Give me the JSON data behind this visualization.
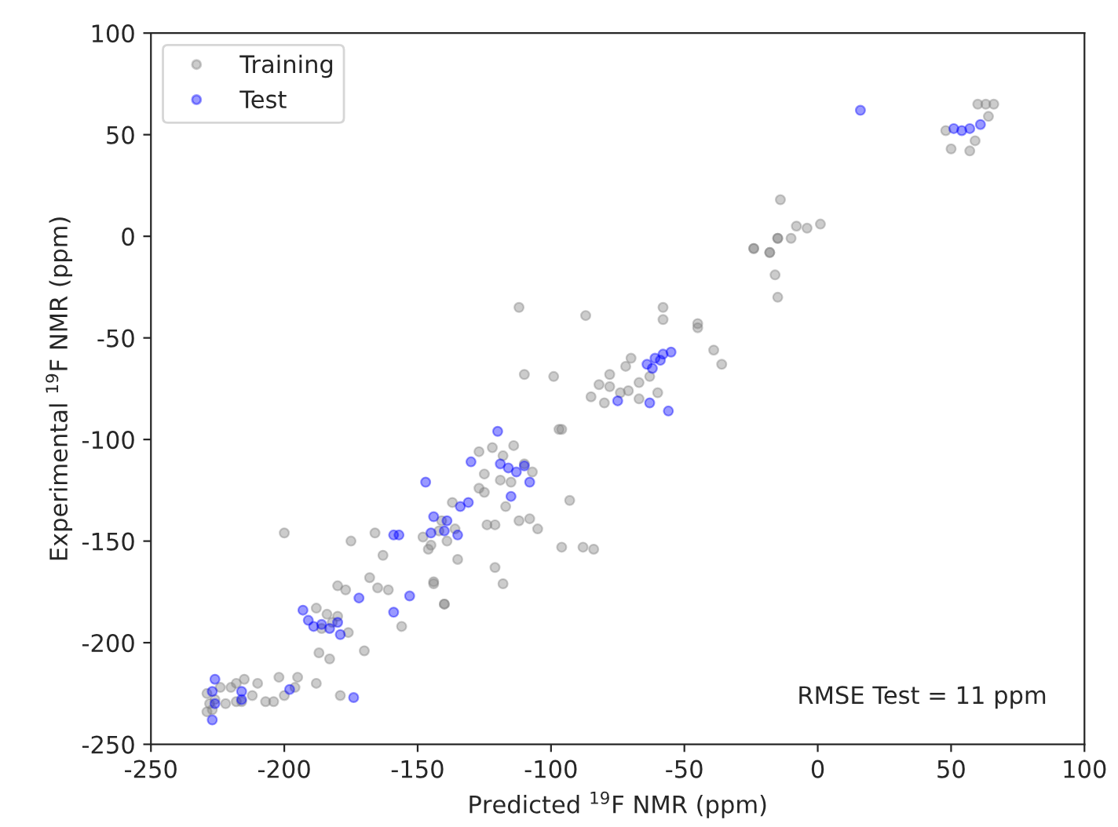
{
  "chart_data": {
    "type": "scatter",
    "xlabel": "Predicted $^{19}$F NMR (ppm)",
    "ylabel": "Experimental $^{19}$F NMR (ppm)",
    "xlim": [
      -250,
      100
    ],
    "ylim": [
      -250,
      100
    ],
    "xticks": [
      -250,
      -200,
      -150,
      -100,
      -50,
      0,
      50,
      100
    ],
    "yticks": [
      -250,
      -200,
      -150,
      -100,
      -50,
      0,
      50,
      100
    ],
    "grid": false,
    "legend": "top left",
    "marker": "circle",
    "annotations": [
      "RMSE Test = 11 ppm"
    ],
    "series": [
      {
        "name": "Training",
        "color": "#808080",
        "x": [
          -228,
          -226,
          -229,
          -224,
          -220,
          -218,
          -215,
          -210,
          -222,
          -227,
          -218,
          -216,
          -207,
          -204,
          -200,
          -196,
          -229,
          -212,
          -202,
          -195,
          -188,
          -179,
          -170,
          -187,
          -183,
          -156,
          -140,
          -144,
          -184,
          -186,
          -180,
          -176,
          -182,
          -188,
          -97,
          -93,
          -96,
          -88,
          -84,
          -121,
          -118,
          -144,
          -135,
          -163,
          -166,
          -175,
          -200,
          -148,
          -145,
          -142,
          -139,
          -136,
          -146,
          -141,
          -127,
          -125,
          -117,
          -112,
          -108,
          -105,
          -121,
          -124,
          -137,
          -127,
          -122,
          -118,
          -114,
          -110,
          -107,
          -125,
          -119,
          -115,
          -168,
          -180,
          -177,
          -165,
          -161,
          -140,
          -24,
          -15,
          -18,
          -16,
          -15,
          -58,
          -58,
          -45,
          -45,
          -39,
          -36,
          -87,
          -112,
          -110,
          -99,
          -96,
          -70,
          -72,
          -78,
          -82,
          -78,
          -85,
          -80,
          -71,
          -67,
          -60,
          -63,
          -67,
          -74,
          60,
          63,
          66,
          64,
          50,
          57,
          59,
          48,
          -14,
          -8,
          -4,
          1,
          -15,
          -10,
          -24,
          -18
        ],
        "values": [
          -230,
          -228,
          -225,
          -222,
          -222,
          -220,
          -218,
          -220,
          -230,
          -233,
          -229,
          -229,
          -229,
          -229,
          -226,
          -222,
          -234,
          -226,
          -217,
          -217,
          -220,
          -226,
          -204,
          -205,
          -208,
          -192,
          -181,
          -171,
          -186,
          -193,
          -187,
          -195,
          -190,
          -183,
          -95,
          -130,
          -153,
          -153,
          -154,
          -163,
          -171,
          -170,
          -159,
          -157,
          -146,
          -150,
          -146,
          -148,
          -152,
          -145,
          -150,
          -144,
          -154,
          -140,
          -124,
          -126,
          -133,
          -140,
          -139,
          -144,
          -142,
          -142,
          -131,
          -106,
          -104,
          -108,
          -103,
          -112,
          -116,
          -117,
          -120,
          -121,
          -168,
          -172,
          -174,
          -173,
          -174,
          -181,
          -6,
          -1,
          -8,
          -19,
          -30,
          -35,
          -41,
          -43,
          -45,
          -56,
          -63,
          -39,
          -35,
          -68,
          -69,
          -95,
          -60,
          -64,
          -68,
          -73,
          -74,
          -79,
          -82,
          -76,
          -80,
          -77,
          -69,
          -72,
          -77,
          65,
          65,
          65,
          59,
          43,
          42,
          47,
          52,
          18,
          5,
          4,
          6,
          -1,
          -1,
          -6,
          -8
        ]
      },
      {
        "name": "Test",
        "color": "#0000ff",
        "x": [
          -226,
          -227,
          -226,
          -227,
          -216,
          -216,
          -198,
          -174,
          -191,
          -189,
          -186,
          -183,
          -180,
          -193,
          -172,
          -153,
          -159,
          -179,
          -120,
          -130,
          -147,
          -119,
          -116,
          -113,
          -110,
          -115,
          -108,
          -131,
          -134,
          -144,
          -139,
          -140,
          -145,
          -135,
          -159,
          -157,
          -64,
          -61,
          -58,
          -55,
          -62,
          -59,
          -75,
          -63,
          -56,
          16,
          51,
          54,
          57,
          61
        ],
        "values": [
          -218,
          -224,
          -230,
          -238,
          -224,
          -228,
          -223,
          -227,
          -189,
          -192,
          -191,
          -193,
          -190,
          -184,
          -178,
          -177,
          -185,
          -196,
          -96,
          -111,
          -121,
          -112,
          -114,
          -116,
          -113,
          -128,
          -121,
          -131,
          -133,
          -138,
          -140,
          -145,
          -146,
          -147,
          -147,
          -147,
          -63,
          -60,
          -58,
          -57,
          -65,
          -61,
          -81,
          -82,
          -86,
          62,
          53,
          52,
          53,
          55
        ]
      }
    ]
  }
}
